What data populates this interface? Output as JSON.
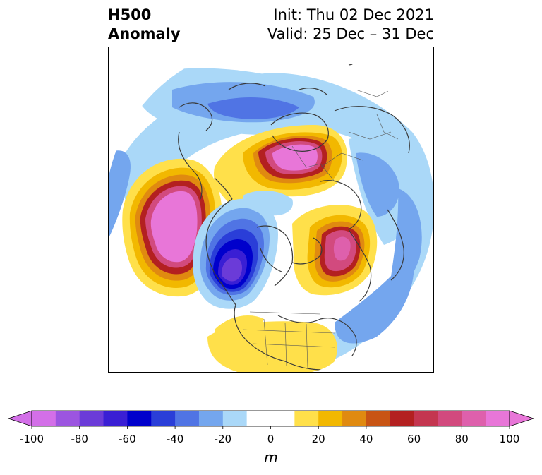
{
  "title": {
    "left_line1": "H500",
    "left_line2": "Anomaly",
    "right_line1": "Init: Thu 02 Dec 2021",
    "right_line2": "Valid: 25 Dec – 31 Dec"
  },
  "colorbar": {
    "unit": "m",
    "ticks": [
      "-100",
      "-80",
      "-60",
      "-40",
      "-20",
      "0",
      "20",
      "40",
      "60",
      "80",
      "100"
    ],
    "levels": [
      -100,
      -90,
      -80,
      -70,
      -60,
      -50,
      -40,
      -30,
      -20,
      -10,
      10,
      20,
      30,
      40,
      50,
      60,
      70,
      80,
      90,
      100
    ],
    "colors": [
      "#d36fe8",
      "#9c55e0",
      "#6b3bd8",
      "#3a1fd4",
      "#0000cc",
      "#2a3ed8",
      "#5074e4",
      "#74a6ee",
      "#aad8f8",
      "#ffffff",
      "#ffe04a",
      "#f2b800",
      "#e08a10",
      "#c85414",
      "#b32020",
      "#c43650",
      "#d24a7e",
      "#de60ac",
      "#e876d8"
    ],
    "extend": "both",
    "under_color": "#d36fe8",
    "over_color": "#e876d8"
  },
  "map": {
    "projection": "north-polar-stereographic",
    "field": "500 hPa geopotential height anomaly"
  }
}
